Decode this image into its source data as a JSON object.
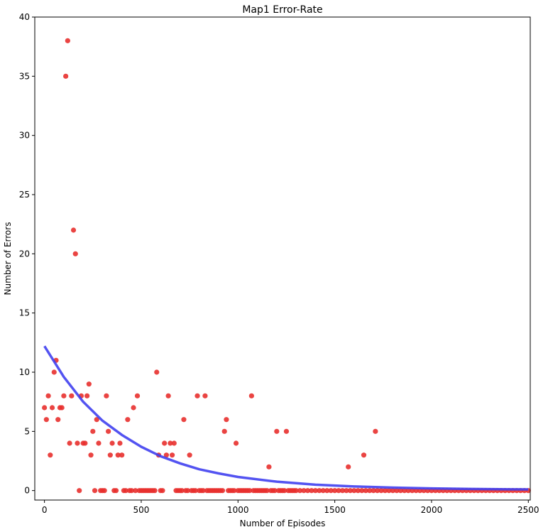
{
  "chart_data": {
    "type": "scatter",
    "title": "Map1 Error-Rate",
    "xlabel": "Number of Episodes",
    "ylabel": "Number of Errors",
    "xlim": [
      -50,
      2510
    ],
    "ylim": [
      -0.8,
      40
    ],
    "x_ticks": [
      0,
      500,
      1000,
      1500,
      2000,
      2500
    ],
    "y_ticks": [
      0,
      5,
      10,
      15,
      20,
      25,
      30,
      35,
      40
    ],
    "x_tick_labels": [
      "0",
      "500",
      "1000",
      "1500",
      "2000",
      "2500"
    ],
    "y_tick_labels": [
      "0",
      "5",
      "10",
      "15",
      "20",
      "25",
      "30",
      "35",
      "40"
    ],
    "grid": false,
    "scatter_color": "#e8302e",
    "curve_color": "#4040f0",
    "series": [
      {
        "kind": "scatter",
        "points": [
          [
            0,
            7
          ],
          [
            10,
            6
          ],
          [
            20,
            8
          ],
          [
            30,
            3
          ],
          [
            40,
            7
          ],
          [
            50,
            10
          ],
          [
            60,
            11
          ],
          [
            70,
            6
          ],
          [
            80,
            7
          ],
          [
            90,
            7
          ],
          [
            100,
            8
          ],
          [
            110,
            35
          ],
          [
            120,
            38
          ],
          [
            130,
            4
          ],
          [
            140,
            8
          ],
          [
            150,
            22
          ],
          [
            160,
            20
          ],
          [
            170,
            4
          ],
          [
            180,
            0
          ],
          [
            190,
            8
          ],
          [
            200,
            4
          ],
          [
            210,
            4
          ],
          [
            220,
            8
          ],
          [
            230,
            9
          ],
          [
            240,
            3
          ],
          [
            250,
            5
          ],
          [
            260,
            0
          ],
          [
            270,
            6
          ],
          [
            280,
            4
          ],
          [
            290,
            0
          ],
          [
            300,
            0
          ],
          [
            310,
            0
          ],
          [
            320,
            8
          ],
          [
            330,
            5
          ],
          [
            340,
            3
          ],
          [
            350,
            4
          ],
          [
            360,
            0
          ],
          [
            370,
            0
          ],
          [
            380,
            3
          ],
          [
            390,
            4
          ],
          [
            400,
            3
          ],
          [
            410,
            0
          ],
          [
            420,
            0
          ],
          [
            430,
            6
          ],
          [
            440,
            0
          ],
          [
            450,
            0
          ],
          [
            460,
            7
          ],
          [
            470,
            0
          ],
          [
            480,
            8
          ],
          [
            490,
            0
          ],
          [
            500,
            0
          ],
          [
            510,
            0
          ],
          [
            520,
            0
          ],
          [
            530,
            0
          ],
          [
            540,
            0
          ],
          [
            550,
            0
          ],
          [
            560,
            0
          ],
          [
            570,
            0
          ],
          [
            580,
            10
          ],
          [
            590,
            3
          ],
          [
            600,
            0
          ],
          [
            610,
            0
          ],
          [
            620,
            4
          ],
          [
            630,
            3
          ],
          [
            640,
            8
          ],
          [
            650,
            4
          ],
          [
            660,
            3
          ],
          [
            670,
            4
          ],
          [
            680,
            0
          ],
          [
            690,
            0
          ],
          [
            700,
            0
          ],
          [
            710,
            0
          ],
          [
            720,
            6
          ],
          [
            730,
            0
          ],
          [
            740,
            0
          ],
          [
            750,
            3
          ],
          [
            760,
            0
          ],
          [
            770,
            0
          ],
          [
            780,
            0
          ],
          [
            790,
            8
          ],
          [
            800,
            0
          ],
          [
            810,
            0
          ],
          [
            820,
            0
          ],
          [
            830,
            8
          ],
          [
            840,
            0
          ],
          [
            850,
            0
          ],
          [
            860,
            0
          ],
          [
            870,
            0
          ],
          [
            880,
            0
          ],
          [
            890,
            0
          ],
          [
            900,
            0
          ],
          [
            910,
            0
          ],
          [
            920,
            0
          ],
          [
            930,
            5
          ],
          [
            940,
            6
          ],
          [
            950,
            0
          ],
          [
            960,
            0
          ],
          [
            970,
            0
          ],
          [
            980,
            0
          ],
          [
            990,
            4
          ],
          [
            1000,
            0
          ],
          [
            1010,
            0
          ],
          [
            1020,
            0
          ],
          [
            1030,
            0
          ],
          [
            1040,
            0
          ],
          [
            1050,
            0
          ],
          [
            1060,
            0
          ],
          [
            1070,
            8
          ],
          [
            1080,
            0
          ],
          [
            1090,
            0
          ],
          [
            1100,
            0
          ],
          [
            1110,
            0
          ],
          [
            1120,
            0
          ],
          [
            1130,
            0
          ],
          [
            1140,
            0
          ],
          [
            1150,
            0
          ],
          [
            1160,
            2
          ],
          [
            1170,
            0
          ],
          [
            1180,
            0
          ],
          [
            1190,
            0
          ],
          [
            1200,
            5
          ],
          [
            1210,
            0
          ],
          [
            1220,
            0
          ],
          [
            1230,
            0
          ],
          [
            1240,
            0
          ],
          [
            1250,
            5
          ],
          [
            1260,
            0
          ],
          [
            1270,
            0
          ],
          [
            1280,
            0
          ],
          [
            1290,
            0
          ],
          [
            1300,
            0
          ],
          [
            1320,
            0
          ],
          [
            1340,
            0
          ],
          [
            1360,
            0
          ],
          [
            1380,
            0
          ],
          [
            1400,
            0
          ],
          [
            1420,
            0
          ],
          [
            1440,
            0
          ],
          [
            1460,
            0
          ],
          [
            1480,
            0
          ],
          [
            1500,
            0
          ],
          [
            1520,
            0
          ],
          [
            1540,
            0
          ],
          [
            1560,
            0
          ],
          [
            1570,
            2
          ],
          [
            1580,
            0
          ],
          [
            1600,
            0
          ],
          [
            1620,
            0
          ],
          [
            1640,
            0
          ],
          [
            1650,
            3
          ],
          [
            1660,
            0
          ],
          [
            1680,
            0
          ],
          [
            1700,
            0
          ],
          [
            1710,
            5
          ],
          [
            1720,
            0
          ],
          [
            1740,
            0
          ],
          [
            1760,
            0
          ],
          [
            1780,
            0
          ],
          [
            1800,
            0
          ],
          [
            1820,
            0
          ],
          [
            1840,
            0
          ],
          [
            1860,
            0
          ],
          [
            1880,
            0
          ],
          [
            1900,
            0
          ],
          [
            1920,
            0
          ],
          [
            1940,
            0
          ],
          [
            1960,
            0
          ],
          [
            1980,
            0
          ],
          [
            2000,
            0
          ],
          [
            2020,
            0
          ],
          [
            2040,
            0
          ],
          [
            2060,
            0
          ],
          [
            2080,
            0
          ],
          [
            2100,
            0
          ],
          [
            2120,
            0
          ],
          [
            2140,
            0
          ],
          [
            2160,
            0
          ],
          [
            2180,
            0
          ],
          [
            2200,
            0
          ],
          [
            2220,
            0
          ],
          [
            2240,
            0
          ],
          [
            2260,
            0
          ],
          [
            2280,
            0
          ],
          [
            2300,
            0
          ],
          [
            2320,
            0
          ],
          [
            2340,
            0
          ],
          [
            2360,
            0
          ],
          [
            2380,
            0
          ],
          [
            2400,
            0
          ],
          [
            2420,
            0
          ],
          [
            2440,
            0
          ],
          [
            2460,
            0
          ],
          [
            2480,
            0
          ],
          [
            2500,
            0
          ]
        ]
      },
      {
        "kind": "line",
        "points": [
          [
            0,
            12.2
          ],
          [
            100,
            9.6
          ],
          [
            200,
            7.5
          ],
          [
            300,
            5.9
          ],
          [
            400,
            4.7
          ],
          [
            500,
            3.7
          ],
          [
            600,
            2.9
          ],
          [
            700,
            2.3
          ],
          [
            800,
            1.8
          ],
          [
            900,
            1.45
          ],
          [
            1000,
            1.15
          ],
          [
            1200,
            0.75
          ],
          [
            1400,
            0.5
          ],
          [
            1600,
            0.35
          ],
          [
            1800,
            0.25
          ],
          [
            2000,
            0.18
          ],
          [
            2200,
            0.14
          ],
          [
            2400,
            0.11
          ],
          [
            2500,
            0.1
          ]
        ]
      }
    ]
  }
}
